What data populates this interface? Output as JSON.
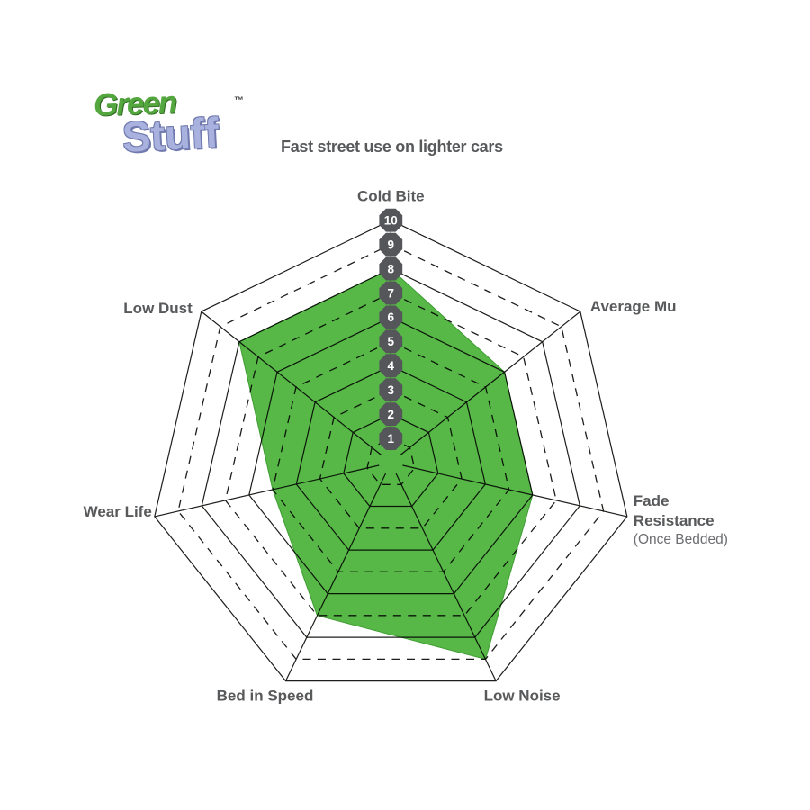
{
  "brand": {
    "name_top": "Green",
    "trademark": "™",
    "name_bottom": "Stuff"
  },
  "title": "Fast street use on lighter cars",
  "chart_data": {
    "type": "radar",
    "title": "Fast street use on lighter cars",
    "categories": [
      {
        "label": "Cold Bite"
      },
      {
        "label": "Average Mu"
      },
      {
        "label": "Fade Resistance",
        "lines": [
          "Fade",
          "Resistance"
        ],
        "sublabel": "(Once Bedded)"
      },
      {
        "label": "Low Noise"
      },
      {
        "label": "Bed in Speed"
      },
      {
        "label": "Wear Life"
      },
      {
        "label": "Low Dust"
      }
    ],
    "series": [
      {
        "name": "GreenStuff",
        "values": [
          8,
          6,
          6,
          9,
          7,
          5,
          8
        ]
      }
    ],
    "scale": {
      "min": 0,
      "max": 10,
      "ticks": [
        1,
        2,
        3,
        4,
        5,
        6,
        7,
        8,
        9,
        10
      ]
    },
    "grid": {
      "solid_rings": "even",
      "dashed_rings": "odd",
      "shape": "heptagon"
    },
    "legend": "none",
    "colors": {
      "fill": "#57b847",
      "fill_stroke": "#3f9c33",
      "grid_line": "#1d1d1b",
      "badge_fill": "#55565a",
      "badge_text": "#ffffff",
      "label": "#58595b",
      "sublabel": "#6d6e71"
    }
  }
}
